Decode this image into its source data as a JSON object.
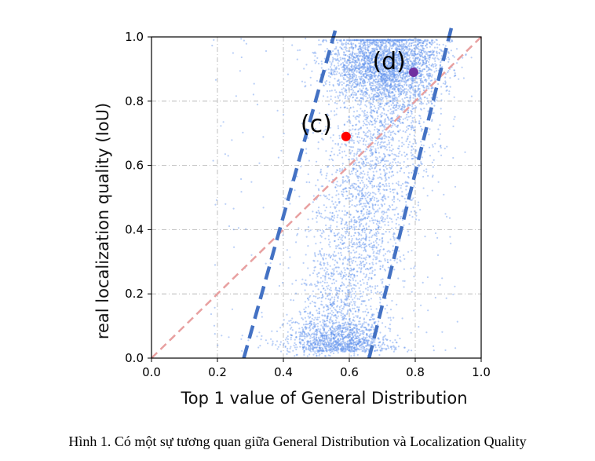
{
  "chart_data": {
    "type": "scatter",
    "xlabel": "Top 1 value of General Distribution",
    "ylabel": "real localization quality (IoU)",
    "xlim": [
      0.0,
      1.0
    ],
    "ylim": [
      0.0,
      1.0
    ],
    "xticks": [
      "0.0",
      "0.2",
      "0.4",
      "0.6",
      "0.8",
      "1.0"
    ],
    "yticks": [
      "0.0",
      "0.2",
      "0.4",
      "0.6",
      "0.8",
      "1.0"
    ],
    "grid": true,
    "scatter_color": "#6495ED",
    "reference_line": {
      "x": [
        0.0,
        1.0
      ],
      "y": [
        0.0,
        1.0
      ],
      "style": "dashed",
      "color": "#E8A0A0"
    },
    "bounds": [
      {
        "name": "left",
        "x": [
          0.28,
          0.56
        ],
        "y": [
          0.0,
          1.03
        ],
        "style": "dashed",
        "color": "#4472C4"
      },
      {
        "name": "right",
        "x": [
          0.66,
          0.91
        ],
        "y": [
          0.0,
          1.03
        ],
        "style": "dashed",
        "color": "#4472C4"
      }
    ],
    "highlighted_points": [
      {
        "label": "(c)",
        "x": 0.59,
        "y": 0.69,
        "color": "#FF0000"
      },
      {
        "label": "(d)",
        "x": 0.795,
        "y": 0.89,
        "color": "#7030A0"
      }
    ]
  },
  "caption": "Hình 1. Có một sự tương quan giữa General Distribution và Localization Quality"
}
